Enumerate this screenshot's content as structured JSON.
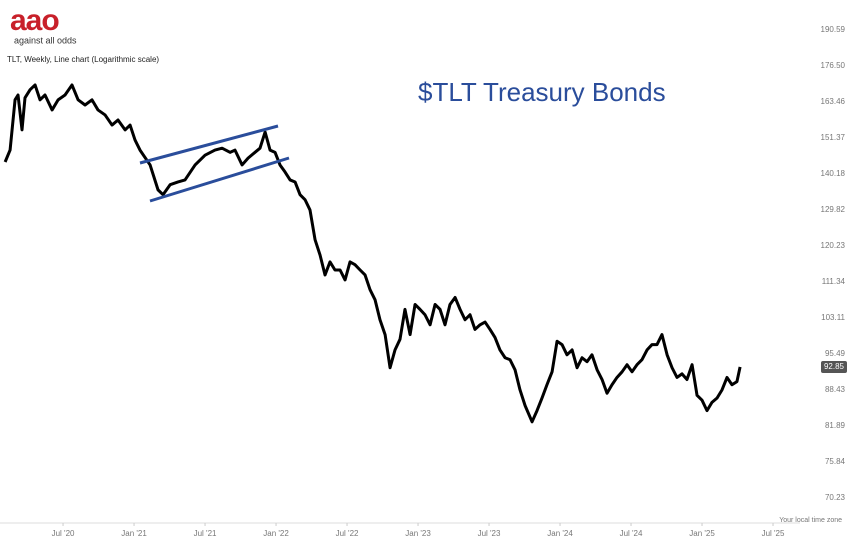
{
  "logo": {
    "mark": "aao",
    "tagline": "against all odds"
  },
  "chart_data": {
    "type": "line",
    "title": "$TLT Treasury Bonds",
    "subtitle": "TLT, Weekly, Line chart (Logarithmic scale)",
    "footnote": "Your local time zone",
    "color": "#000000",
    "log_scale": true,
    "grid": false,
    "xlim": [
      2020.056,
      2025.69
    ],
    "ylim": [
      66.7,
      198.9
    ],
    "xticks": [
      {
        "value": 2020.5,
        "label": "Jul '20"
      },
      {
        "value": 2021.0,
        "label": "Jan '21"
      },
      {
        "value": 2021.5,
        "label": "Jul '21"
      },
      {
        "value": 2022.0,
        "label": "Jan '22"
      },
      {
        "value": 2022.5,
        "label": "Jul '22"
      },
      {
        "value": 2023.0,
        "label": "Jan '23"
      },
      {
        "value": 2023.5,
        "label": "Jul '23"
      },
      {
        "value": 2024.0,
        "label": "Jan '24"
      },
      {
        "value": 2024.5,
        "label": "Jul '24"
      },
      {
        "value": 2025.0,
        "label": "Jan '25"
      },
      {
        "value": 2025.5,
        "label": "Jul '25"
      }
    ],
    "yticks": [
      190.59,
      {
        "value": 176.5,
        "label": "176.50"
      },
      163.46,
      151.37,
      140.18,
      129.82,
      120.23,
      111.34,
      103.11,
      95.49,
      88.43,
      81.89,
      75.84,
      70.23
    ],
    "x": [
      2020.092,
      2020.127,
      2020.162,
      2020.183,
      2020.211,
      2020.232,
      2020.268,
      2020.303,
      2020.338,
      2020.373,
      2020.423,
      2020.465,
      2020.514,
      2020.563,
      2020.606,
      2020.655,
      2020.704,
      2020.746,
      2020.796,
      2020.845,
      2020.887,
      2020.937,
      2020.972,
      2021.007,
      2021.042,
      2021.113,
      2021.169,
      2021.204,
      2021.254,
      2021.31,
      2021.359,
      2021.43,
      2021.5,
      2021.57,
      2021.62,
      2021.676,
      2021.711,
      2021.761,
      2021.803,
      2021.852,
      2021.887,
      2021.923,
      2021.958,
      2021.993,
      2022.028,
      2022.063,
      2022.099,
      2022.134,
      2022.169,
      2022.204,
      2022.239,
      2022.275,
      2022.31,
      2022.345,
      2022.38,
      2022.415,
      2022.451,
      2022.486,
      2022.521,
      2022.556,
      2022.592,
      2022.627,
      2022.662,
      2022.697,
      2022.732,
      2022.768,
      2022.803,
      2022.838,
      2022.873,
      2022.908,
      2022.944,
      2022.979,
      2023.014,
      2023.049,
      2023.085,
      2023.12,
      2023.155,
      2023.19,
      2023.225,
      2023.261,
      2023.296,
      2023.331,
      2023.366,
      2023.401,
      2023.437,
      2023.472,
      2023.507,
      2023.542,
      2023.577,
      2023.613,
      2023.648,
      2023.683,
      2023.718,
      2023.754,
      2023.803,
      2023.838,
      2023.873,
      2023.908,
      2023.944,
      2023.979,
      2024.014,
      2024.049,
      2024.085,
      2024.12,
      2024.155,
      2024.19,
      2024.225,
      2024.261,
      2024.296,
      2024.331,
      2024.366,
      2024.401,
      2024.437,
      2024.472,
      2024.507,
      2024.542,
      2024.577,
      2024.613,
      2024.648,
      2024.683,
      2024.718,
      2024.754,
      2024.789,
      2024.824,
      2024.859,
      2024.894,
      2024.93,
      2024.965,
      2025.0,
      2025.035,
      2025.07,
      2025.106,
      2025.141,
      2025.176,
      2025.211,
      2025.246,
      2025.268
    ],
    "values": [
      143.8,
      147.5,
      164.2,
      165.9,
      154.0,
      164.9,
      167.8,
      169.5,
      164.2,
      165.9,
      160.7,
      164.2,
      165.9,
      169.5,
      164.2,
      162.4,
      164.2,
      160.7,
      159.0,
      155.6,
      157.3,
      154.0,
      155.6,
      150.7,
      147.5,
      142.9,
      135.5,
      134.1,
      137.0,
      137.8,
      138.4,
      142.9,
      145.9,
      147.5,
      148.1,
      146.8,
      147.5,
      142.9,
      145.0,
      146.8,
      148.1,
      153.3,
      147.5,
      146.8,
      142.9,
      140.8,
      138.4,
      137.8,
      134.1,
      132.7,
      129.82,
      121.8,
      117.9,
      113.0,
      116.2,
      114.2,
      114.2,
      111.8,
      116.2,
      115.5,
      114.2,
      113.0,
      109.5,
      107.2,
      102.7,
      99.5,
      92.7,
      96.3,
      98.5,
      105.0,
      99.5,
      106.1,
      105.0,
      103.8,
      101.6,
      106.1,
      105.0,
      101.6,
      106.1,
      107.7,
      105.0,
      102.7,
      103.8,
      100.6,
      101.6,
      102.2,
      100.6,
      98.9,
      96.3,
      94.7,
      94.3,
      92.3,
      88.43,
      85.5,
      82.6,
      84.6,
      86.9,
      89.4,
      91.9,
      98.1,
      97.4,
      95.3,
      96.3,
      92.7,
      94.7,
      93.9,
      95.3,
      92.3,
      90.4,
      87.8,
      89.4,
      90.8,
      91.9,
      93.3,
      91.9,
      93.3,
      94.3,
      96.3,
      97.4,
      97.4,
      99.5,
      95.3,
      92.7,
      90.8,
      91.5,
      90.4,
      93.3,
      87.4,
      86.5,
      84.6,
      86.1,
      86.9,
      88.43,
      90.8,
      89.4,
      90.0,
      92.85
    ]
  }
}
